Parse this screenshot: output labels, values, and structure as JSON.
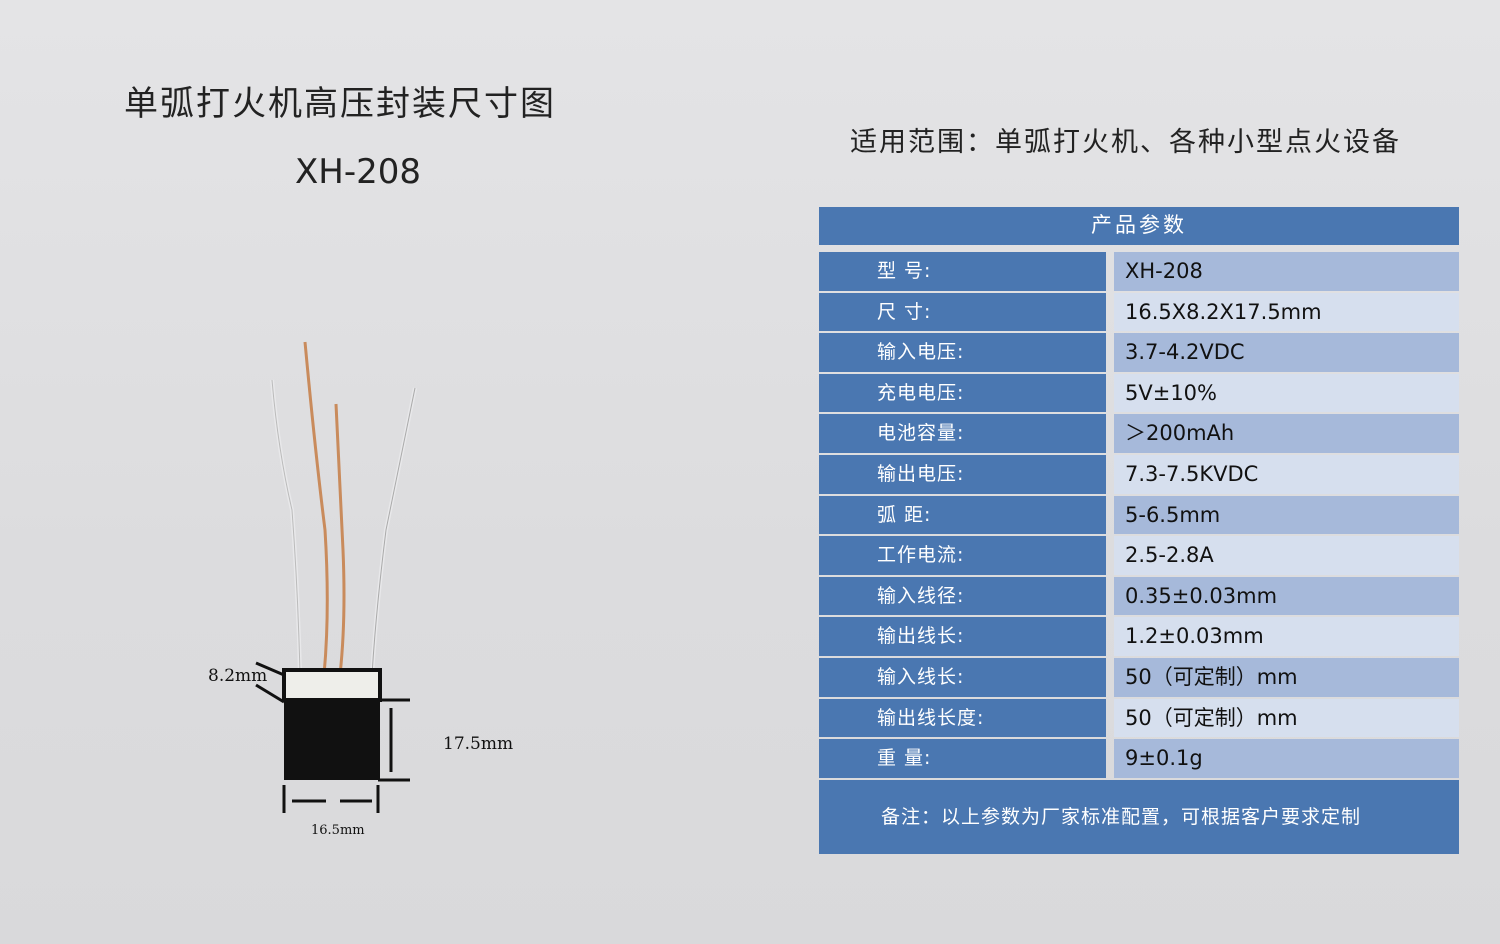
{
  "title": "单弧打火机高压封装尺寸图",
  "model": "XH-208",
  "scope": "适用范围：单弧打火机、各种小型点火设备",
  "table": {
    "header": "产品参数",
    "rows": [
      {
        "label": "型  号:",
        "value": "XH-208"
      },
      {
        "label": "尺  寸:",
        "value": "16.5X8.2X17.5mm"
      },
      {
        "label": "输入电压:",
        "value": "3.7-4.2VDC"
      },
      {
        "label": "充电电压:",
        "value": "5V±10%"
      },
      {
        "label": "电池容量:",
        "value": "＞200mAh"
      },
      {
        "label": "输出电压:",
        "value": "7.3-7.5KVDC"
      },
      {
        "label": "弧  距:",
        "value": "5-6.5mm"
      },
      {
        "label": "工作电流:",
        "value": "2.5-2.8A"
      },
      {
        "label": "输入线径:",
        "value": "0.35±0.03mm"
      },
      {
        "label": "输出线长:",
        "value": "1.2±0.03mm"
      },
      {
        "label": "输入线长:",
        "value": "50（可定制）mm"
      },
      {
        "label": "输出线长度:",
        "value": "50（可定制）mm"
      },
      {
        "label": "重  量:",
        "value": "9±0.1g"
      }
    ],
    "note": "备注：以上参数为厂家标准配置，可根据客户要求定制"
  },
  "dimensions": {
    "depth": "8.2mm",
    "height": "17.5mm",
    "width": "16.5mm"
  }
}
